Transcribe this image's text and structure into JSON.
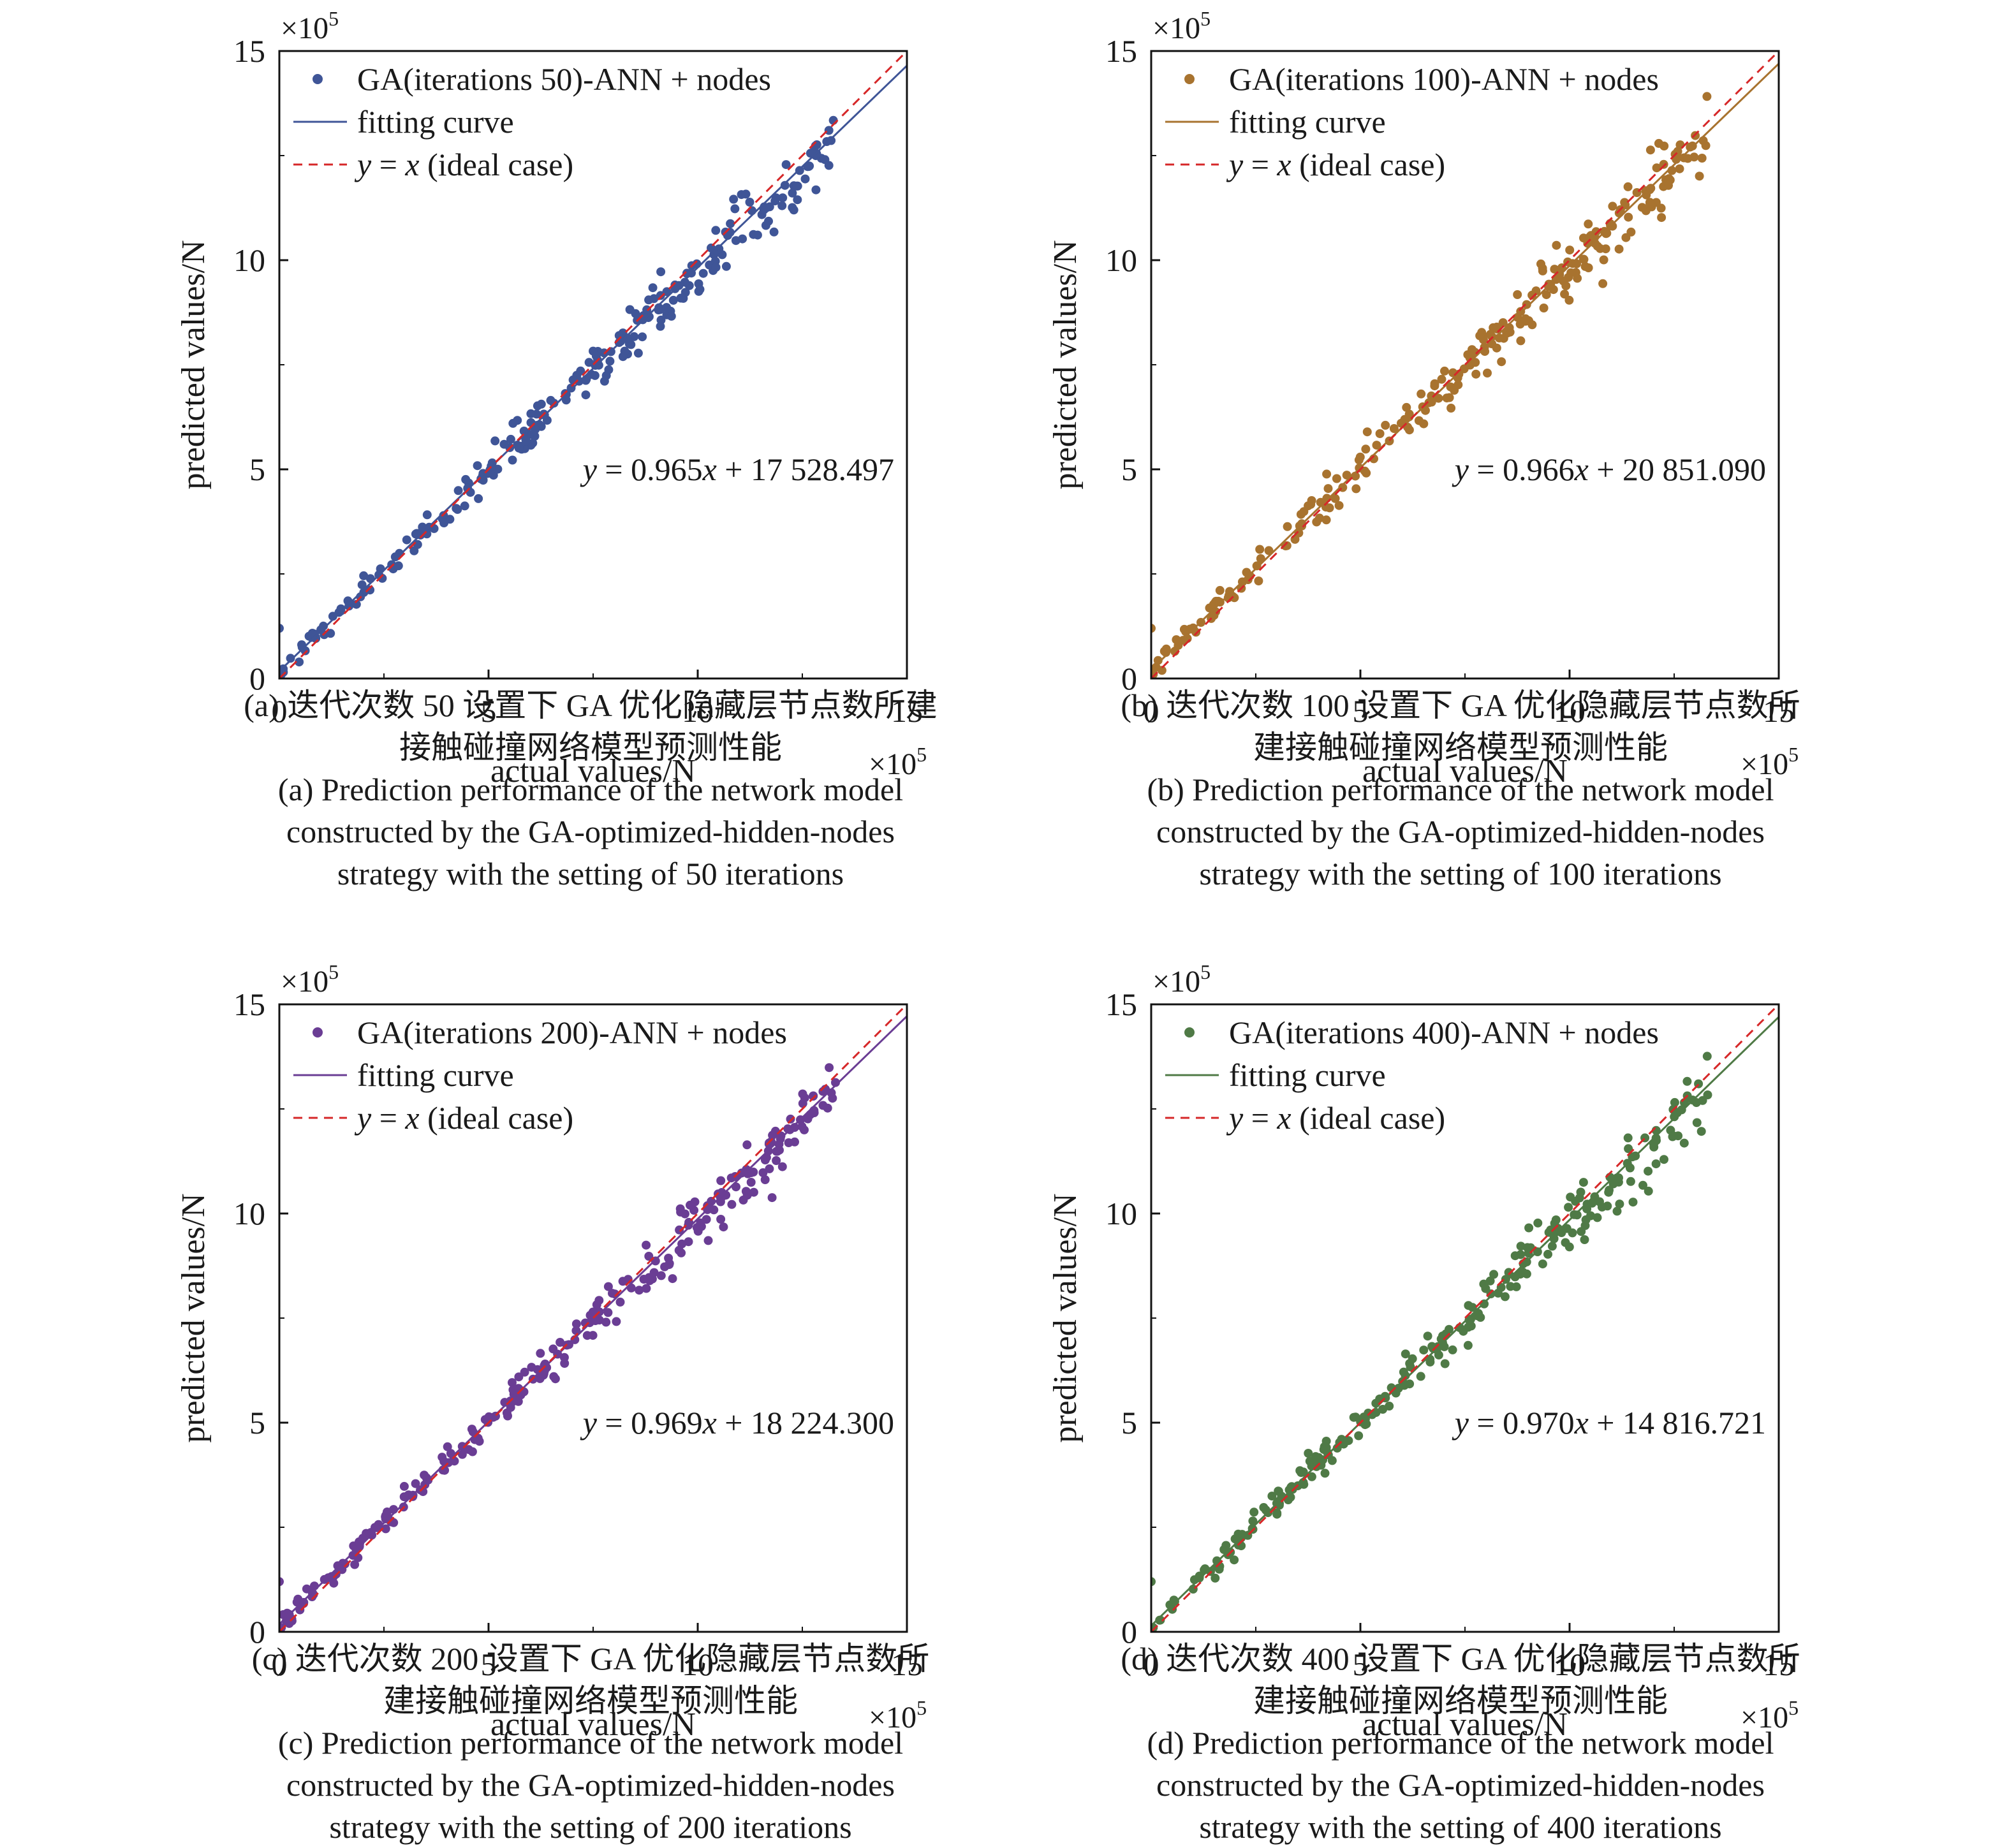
{
  "chart_data": [
    {
      "type": "scatter",
      "panel": "a",
      "xlabel": "actual values/N",
      "ylabel": "predicted values/N",
      "x_multiplier": "×10",
      "y_multiplier": "×10",
      "multiplier_exp": "5",
      "xlim": [
        0,
        15
      ],
      "ylim": [
        0,
        15
      ],
      "xticks": [
        "0",
        "5",
        "10",
        "15"
      ],
      "yticks": [
        "0",
        "5",
        "10",
        "15"
      ],
      "grid": false,
      "legend_position": "top-left",
      "color": "#3f5597",
      "legend_scatter": "GA(iterations 50)-ANN + nodes",
      "legend_fit": "fitting curve",
      "legend_ideal_var1": "y",
      "legend_ideal_eq": " = ",
      "legend_ideal_var2": "x",
      "legend_ideal_suffix": " (ideal case)",
      "fit": {
        "slope": 0.965,
        "intercept": 0.17528497
      },
      "eq_var1": "y",
      "eq_mid": " = 0.965",
      "eq_var2": "x",
      "eq_rest": " + 17 528.497",
      "series": [
        {
          "name": "GA(iterations 50)-ANN + nodes",
          "seed": 11
        }
      ],
      "caption_cn_1": "(a) 迭代次数 50 设置下 GA 优化隐藏层节点数所建",
      "caption_cn_2": "接触碰撞网络模型预测性能",
      "caption_en_1": "(a) Prediction performance of the network model",
      "caption_en_2": "constructed by the GA-optimized-hidden-nodes",
      "caption_en_3": "strategy with the setting of 50 iterations"
    },
    {
      "type": "scatter",
      "panel": "b",
      "xlabel": "actual values/N",
      "ylabel": "predicted values/N",
      "x_multiplier": "×10",
      "y_multiplier": "×10",
      "multiplier_exp": "5",
      "xlim": [
        0,
        15
      ],
      "ylim": [
        0,
        15
      ],
      "xticks": [
        "0",
        "5",
        "10",
        "15"
      ],
      "yticks": [
        "0",
        "5",
        "10",
        "15"
      ],
      "grid": false,
      "legend_position": "top-left",
      "color": "#a8732f",
      "legend_scatter": "GA(iterations 100)-ANN + nodes",
      "legend_fit": "fitting curve",
      "legend_ideal_var1": "y",
      "legend_ideal_eq": " = ",
      "legend_ideal_var2": "x",
      "legend_ideal_suffix": " (ideal case)",
      "fit": {
        "slope": 0.966,
        "intercept": 0.2085109
      },
      "eq_var1": "y",
      "eq_mid": " = 0.966",
      "eq_var2": "x",
      "eq_rest": " + 20 851.090",
      "series": [
        {
          "name": "GA(iterations 100)-ANN + nodes",
          "seed": 23
        }
      ],
      "caption_cn_1": "(b) 迭代次数 100 设置下 GA 优化隐藏层节点数所",
      "caption_cn_2": "建接触碰撞网络模型预测性能",
      "caption_en_1": "(b) Prediction performance of the network model",
      "caption_en_2": "constructed by the GA-optimized-hidden-nodes",
      "caption_en_3": "strategy with the setting of 100 iterations"
    },
    {
      "type": "scatter",
      "panel": "c",
      "xlabel": "actual values/N",
      "ylabel": "predicted values/N",
      "x_multiplier": "×10",
      "y_multiplier": "×10",
      "multiplier_exp": "5",
      "xlim": [
        0,
        15
      ],
      "ylim": [
        0,
        15
      ],
      "xticks": [
        "0",
        "5",
        "10",
        "15"
      ],
      "yticks": [
        "0",
        "5",
        "10",
        "15"
      ],
      "grid": false,
      "legend_position": "top-left",
      "color": "#6a3d94",
      "legend_scatter": "GA(iterations 200)-ANN + nodes",
      "legend_fit": "fitting curve",
      "legend_ideal_var1": "y",
      "legend_ideal_eq": " = ",
      "legend_ideal_var2": "x",
      "legend_ideal_suffix": " (ideal case)",
      "fit": {
        "slope": 0.969,
        "intercept": 0.182243
      },
      "eq_var1": "y",
      "eq_mid": " = 0.969",
      "eq_var2": "x",
      "eq_rest": " + 18 224.300",
      "series": [
        {
          "name": "GA(iterations 200)-ANN + nodes",
          "seed": 37
        }
      ],
      "caption_cn_1": "(c) 迭代次数 200 设置下 GA 优化隐藏层节点数所",
      "caption_cn_2": "建接触碰撞网络模型预测性能",
      "caption_en_1": "(c) Prediction performance of the network model",
      "caption_en_2": "constructed by the GA-optimized-hidden-nodes",
      "caption_en_3": "strategy with the setting of 200 iterations"
    },
    {
      "type": "scatter",
      "panel": "d",
      "xlabel": "actual values/N",
      "ylabel": "predicted values/N",
      "x_multiplier": "×10",
      "y_multiplier": "×10",
      "multiplier_exp": "5",
      "xlim": [
        0,
        15
      ],
      "ylim": [
        0,
        15
      ],
      "xticks": [
        "0",
        "5",
        "10",
        "15"
      ],
      "yticks": [
        "0",
        "5",
        "10",
        "15"
      ],
      "grid": false,
      "legend_position": "top-left",
      "color": "#4f7a46",
      "legend_scatter": "GA(iterations 400)-ANN + nodes",
      "legend_fit": "fitting curve",
      "legend_ideal_var1": "y",
      "legend_ideal_eq": " = ",
      "legend_ideal_var2": "x",
      "legend_ideal_suffix": " (ideal case)",
      "fit": {
        "slope": 0.97,
        "intercept": 0.14816721
      },
      "eq_var1": "y",
      "eq_mid": " = 0.970",
      "eq_var2": "x",
      "eq_rest": " + 14 816.721",
      "series": [
        {
          "name": "GA(iterations 400)-ANN + nodes",
          "seed": 53
        }
      ],
      "caption_cn_1": "(d) 迭代次数 400 设置下 GA 优化隐藏层节点数所",
      "caption_cn_2": "建接触碰撞网络模型预测性能",
      "caption_en_1": "(d) Prediction performance of the network model",
      "caption_en_2": "constructed by the GA-optimized-hidden-nodes",
      "caption_en_3": "strategy with the setting of 400 iterations"
    }
  ],
  "ideal_line_color": "#d62728"
}
